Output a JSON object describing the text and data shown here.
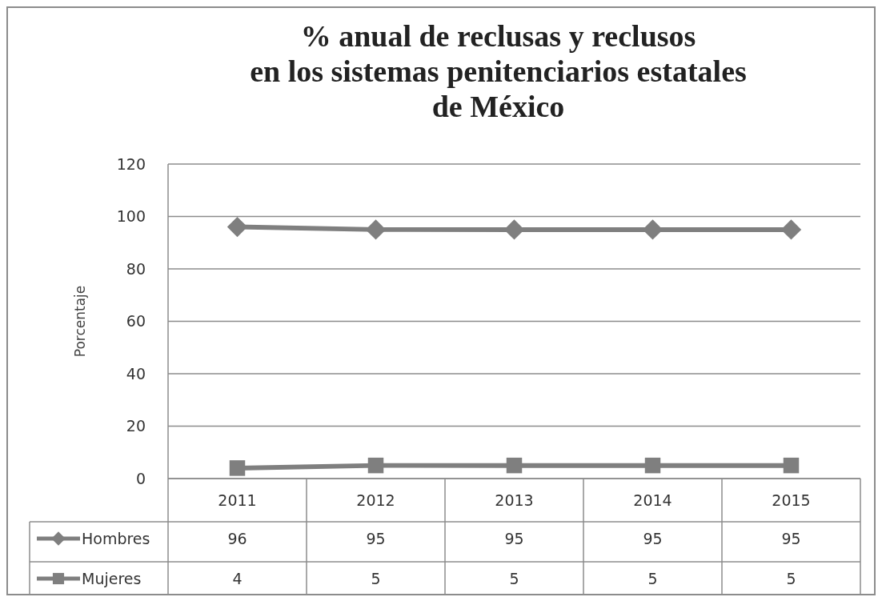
{
  "chart_data": {
    "type": "line",
    "title": "% anual de reclusas y reclusos\nen los sistemas penitenciarios estatales\nde México",
    "ylabel": "Porcentaje",
    "categories": [
      "2011",
      "2012",
      "2013",
      "2014",
      "2015"
    ],
    "series": [
      {
        "name": "Hombres",
        "color": "#7f7f7f",
        "marker": "diamond",
        "values": [
          96,
          95,
          95,
          95,
          95
        ]
      },
      {
        "name": "Mujeres",
        "color": "#7f7f7f",
        "marker": "square",
        "values": [
          4,
          5,
          5,
          5,
          5
        ]
      }
    ],
    "ylim": [
      0,
      120
    ],
    "yticks": [
      0,
      20,
      40,
      60,
      80,
      100,
      120
    ],
    "grid": "y",
    "data_labels": true,
    "legend": "bottom left",
    "line_style": "solid"
  }
}
